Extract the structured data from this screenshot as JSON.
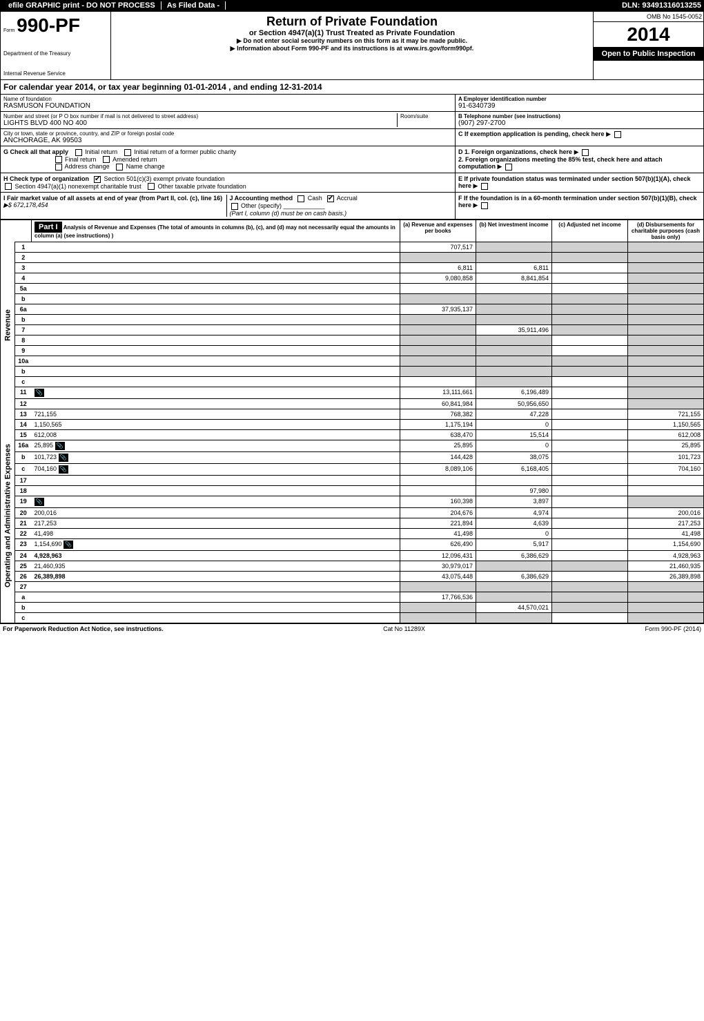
{
  "header": {
    "efile": "efile GRAPHIC print - DO NOT PROCESS",
    "asfiled": "As Filed Data -",
    "dln_label": "DLN:",
    "dln": "93491316013255",
    "omb": "OMB No 1545-0052"
  },
  "form": {
    "prefix": "Form",
    "number": "990-PF",
    "dept1": "Department of the Treasury",
    "dept2": "Internal Revenue Service",
    "title": "Return of Private Foundation",
    "subtitle": "or Section 4947(a)(1) Trust Treated as Private Foundation",
    "note1": "▶ Do not enter social security numbers on this form as it may be made public.",
    "note2": "▶ Information about Form 990-PF and its instructions is at www.irs.gov/form990pf.",
    "year": "2014",
    "open": "Open to Public Inspection"
  },
  "calyear": "For calendar year 2014, or tax year beginning 01-01-2014          , and ending 12-31-2014",
  "entity": {
    "name_label": "Name of foundation",
    "name": "RASMUSON FOUNDATION",
    "addr_label": "Number and street (or P O box number if mail is not delivered to street address)",
    "room_label": "Room/suite",
    "addr": "LIGHTS BLVD 400 NO 400",
    "city_label": "City or town, state or province, country, and ZIP or foreign postal code",
    "city": "ANCHORAGE, AK 99503",
    "ein_label": "A Employer identification number",
    "ein": "91-6340739",
    "phone_label": "B Telephone number (see instructions)",
    "phone": "(907) 297-2700",
    "c_label": "C If exemption application is pending, check here"
  },
  "checks": {
    "g_label": "G Check all that apply",
    "g_initial": "Initial return",
    "g_initial_former": "Initial return of a former public charity",
    "g_final": "Final return",
    "g_amended": "Amended return",
    "g_address": "Address change",
    "g_name": "Name change",
    "h_label": "H Check type of organization",
    "h_501c3": "Section 501(c)(3) exempt private foundation",
    "h_4947": "Section 4947(a)(1) nonexempt charitable trust",
    "h_other_tax": "Other taxable private foundation",
    "i_label": "I Fair market value of all assets at end of year (from Part II, col. (c), line 16)",
    "i_value": "▶$ 672,178,454",
    "j_label": "J Accounting method",
    "j_cash": "Cash",
    "j_accrual": "Accrual",
    "j_other": "Other (specify)",
    "j_note": "(Part I, column (d) must be on cash basis.)",
    "d1": "D 1. Foreign organizations, check here",
    "d2": "2. Foreign organizations meeting the 85% test, check here and attach computation",
    "e": "E If private foundation status was terminated under section 507(b)(1)(A), check here",
    "f": "F If the foundation is in a 60-month termination under section 507(b)(1)(B), check here"
  },
  "part1": {
    "label": "Part I",
    "title": "Analysis of Revenue and Expenses (The total of amounts in columns (b), (c), and (d) may not necessarily equal the amounts in column (a) (see instructions) )",
    "col_a": "(a) Revenue and expenses per books",
    "col_b": "(b) Net investment income",
    "col_c": "(c) Adjusted net income",
    "col_d": "(d) Disbursements for charitable purposes (cash basis only)"
  },
  "sections": {
    "revenue": "Revenue",
    "expenses": "Operating and Administrative Expenses"
  },
  "rows": [
    {
      "s": "rev",
      "n": "1",
      "d": "",
      "a": "707,517",
      "b": "",
      "c": "",
      "shb": true,
      "shc": true,
      "shd": true
    },
    {
      "s": "rev",
      "n": "2",
      "d": "",
      "a": "",
      "b": "",
      "c": "",
      "sha": true,
      "shb": true,
      "shc": true,
      "shd": true
    },
    {
      "s": "rev",
      "n": "3",
      "d": "",
      "a": "6,811",
      "b": "6,811",
      "c": "",
      "shd": true
    },
    {
      "s": "rev",
      "n": "4",
      "d": "",
      "a": "9,080,858",
      "b": "8,841,854",
      "c": "",
      "shd": true
    },
    {
      "s": "rev",
      "n": "5a",
      "d": "",
      "a": "",
      "b": "",
      "c": "",
      "shd": true
    },
    {
      "s": "rev",
      "n": "b",
      "d": "",
      "a": "",
      "b": "",
      "c": "",
      "sha": true,
      "shb": true,
      "shc": true,
      "shd": true
    },
    {
      "s": "rev",
      "n": "6a",
      "d": "",
      "a": "37,935,137",
      "b": "",
      "c": "",
      "shb": true,
      "shc": true,
      "shd": true
    },
    {
      "s": "rev",
      "n": "b",
      "d": "",
      "a": "",
      "b": "",
      "c": "",
      "sha": true,
      "shb": true,
      "shc": true,
      "shd": true
    },
    {
      "s": "rev",
      "n": "7",
      "d": "",
      "a": "",
      "b": "35,911,496",
      "c": "",
      "sha": true,
      "shc": true,
      "shd": true
    },
    {
      "s": "rev",
      "n": "8",
      "d": "",
      "a": "",
      "b": "",
      "c": "",
      "sha": true,
      "shb": true,
      "shd": true
    },
    {
      "s": "rev",
      "n": "9",
      "d": "",
      "a": "",
      "b": "",
      "c": "",
      "sha": true,
      "shb": true,
      "shd": true
    },
    {
      "s": "rev",
      "n": "10a",
      "d": "",
      "a": "",
      "b": "",
      "c": "",
      "sha": true,
      "shb": true,
      "shc": true,
      "shd": true
    },
    {
      "s": "rev",
      "n": "b",
      "d": "",
      "a": "",
      "b": "",
      "c": "",
      "sha": true,
      "shb": true,
      "shc": true,
      "shd": true
    },
    {
      "s": "rev",
      "n": "c",
      "d": "",
      "a": "",
      "b": "",
      "c": "",
      "shb": true,
      "shd": true
    },
    {
      "s": "rev",
      "n": "11",
      "d": "",
      "a": "13,111,661",
      "b": "6,196,489",
      "c": "",
      "icon": true,
      "shd": true
    },
    {
      "s": "rev",
      "n": "12",
      "d": "",
      "a": "60,841,984",
      "b": "50,956,650",
      "c": "",
      "bold": true,
      "shd": true
    },
    {
      "s": "exp",
      "n": "13",
      "d": "721,155",
      "a": "768,382",
      "b": "47,228",
      "c": ""
    },
    {
      "s": "exp",
      "n": "14",
      "d": "1,150,565",
      "a": "1,175,194",
      "b": "0",
      "c": ""
    },
    {
      "s": "exp",
      "n": "15",
      "d": "612,008",
      "a": "638,470",
      "b": "15,514",
      "c": ""
    },
    {
      "s": "exp",
      "n": "16a",
      "d": "25,895",
      "a": "25,895",
      "b": "0",
      "c": "",
      "icon": true
    },
    {
      "s": "exp",
      "n": "b",
      "d": "101,723",
      "a": "144,428",
      "b": "38,075",
      "c": "",
      "icon": true
    },
    {
      "s": "exp",
      "n": "c",
      "d": "704,160",
      "a": "8,089,106",
      "b": "6,168,405",
      "c": "",
      "icon": true
    },
    {
      "s": "exp",
      "n": "17",
      "d": "",
      "a": "",
      "b": "",
      "c": ""
    },
    {
      "s": "exp",
      "n": "18",
      "d": "",
      "a": "",
      "b": "97,980",
      "c": ""
    },
    {
      "s": "exp",
      "n": "19",
      "d": "",
      "a": "160,398",
      "b": "3,897",
      "c": "",
      "icon": true,
      "shd": true
    },
    {
      "s": "exp",
      "n": "20",
      "d": "200,016",
      "a": "204,676",
      "b": "4,974",
      "c": ""
    },
    {
      "s": "exp",
      "n": "21",
      "d": "217,253",
      "a": "221,894",
      "b": "4,639",
      "c": ""
    },
    {
      "s": "exp",
      "n": "22",
      "d": "41,498",
      "a": "41,498",
      "b": "0",
      "c": ""
    },
    {
      "s": "exp",
      "n": "23",
      "d": "1,154,690",
      "a": "626,490",
      "b": "5,917",
      "c": "",
      "icon": true
    },
    {
      "s": "exp",
      "n": "24",
      "d": "4,928,963",
      "a": "12,096,431",
      "b": "6,386,629",
      "c": "",
      "bold": true
    },
    {
      "s": "exp",
      "n": "25",
      "d": "21,460,935",
      "a": "30,979,017",
      "b": "",
      "c": "",
      "shb": true,
      "shc": true
    },
    {
      "s": "exp",
      "n": "26",
      "d": "26,389,898",
      "a": "43,075,448",
      "b": "6,386,629",
      "c": "",
      "bold": true
    },
    {
      "s": "exp",
      "n": "27",
      "d": "",
      "a": "",
      "b": "",
      "c": "",
      "sha": true,
      "shb": true,
      "shc": true,
      "shd": true
    },
    {
      "s": "exp",
      "n": "a",
      "d": "",
      "a": "17,766,536",
      "b": "",
      "c": "",
      "bold": true,
      "shb": true,
      "shc": true,
      "shd": true
    },
    {
      "s": "exp",
      "n": "b",
      "d": "",
      "a": "",
      "b": "44,570,021",
      "c": "",
      "bold": true,
      "sha": true,
      "shc": true,
      "shd": true
    },
    {
      "s": "exp",
      "n": "c",
      "d": "",
      "a": "",
      "b": "",
      "c": "",
      "bold": true,
      "sha": true,
      "shb": true,
      "shd": true
    }
  ],
  "footer": {
    "paperwork": "For Paperwork Reduction Act Notice, see instructions.",
    "cat": "Cat No 11289X",
    "form": "Form 990-PF (2014)"
  }
}
